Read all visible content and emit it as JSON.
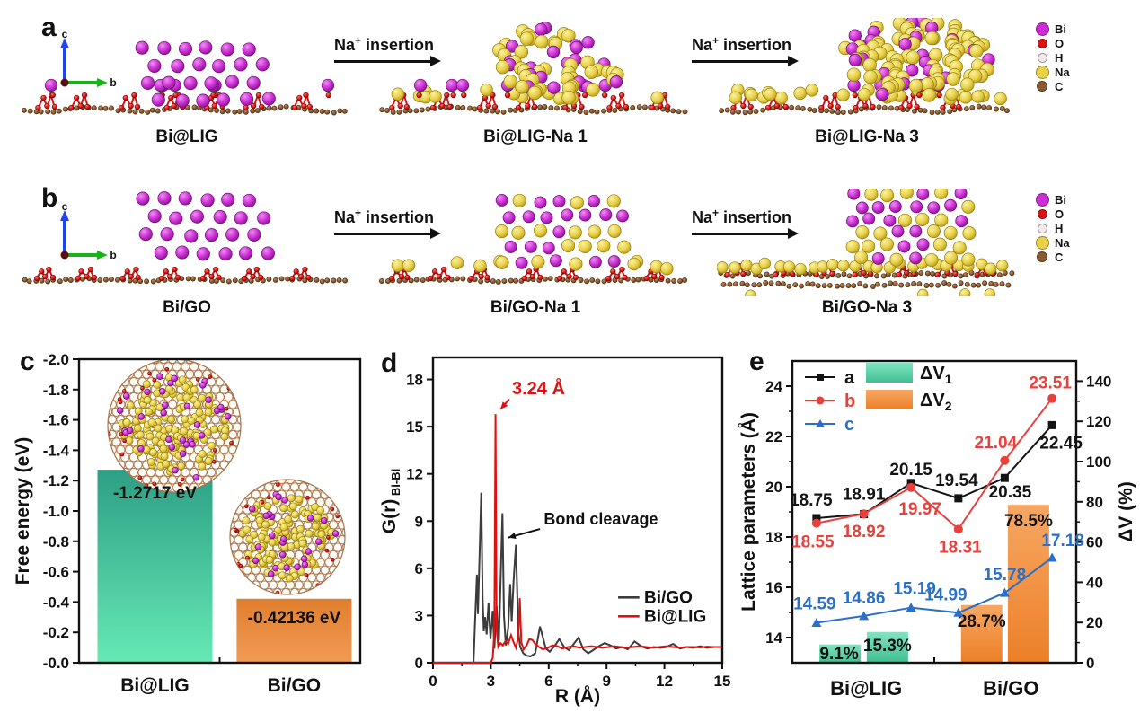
{
  "panel_letters": {
    "a": "a",
    "b": "b",
    "c": "c",
    "d": "d",
    "e": "e"
  },
  "na_insertion": {
    "base": "Na",
    "sup": "+",
    "rest": " insertion"
  },
  "axis_icon": {
    "vertical": "c",
    "horizontal": "b"
  },
  "atom_colors": {
    "Bi": "#cb2ed2",
    "O": "#e01111",
    "H": "#f6e9ea",
    "Na": "#e9d149",
    "C": "#8a5a30"
  },
  "row_a": {
    "letter": "a",
    "structures": [
      {
        "label": "Bi@LIG",
        "kind": "bi_lattice",
        "substrate": "lig"
      },
      {
        "label": "Bi@LIG-Na 1",
        "kind": "mixed_medium",
        "substrate": "lig"
      },
      {
        "label": "Bi@LIG-Na 3",
        "kind": "mixed_large",
        "substrate": "lig"
      }
    ],
    "legend": [
      {
        "label": "Bi",
        "color": "#cb2ed2"
      },
      {
        "label": "O",
        "color": "#e01111"
      },
      {
        "label": "H",
        "color": "#f6e9ea"
      },
      {
        "label": "Na",
        "color": "#e9d149"
      },
      {
        "label": "C",
        "color": "#8a5a30"
      }
    ]
  },
  "row_b": {
    "letter": "b",
    "structures": [
      {
        "label": "Bi/GO",
        "kind": "bi_lattice_high",
        "substrate": "go"
      },
      {
        "label": "Bi/GO-Na 1",
        "kind": "mixed_ordered",
        "substrate": "go"
      },
      {
        "label": "Bi/GO-Na 3",
        "kind": "mixed_tall",
        "substrate": "go_na3"
      }
    ],
    "legend": [
      {
        "label": "Bi",
        "color": "#cb2ed2"
      },
      {
        "label": "O",
        "color": "#e01111"
      },
      {
        "label": "H",
        "color": "#f6e9ea"
      },
      {
        "label": "Na",
        "color": "#e9d149"
      },
      {
        "label": "C",
        "color": "#8a5a30"
      }
    ]
  },
  "chart_data": [
    {
      "id": "c",
      "type": "bar",
      "ylabel": "Free energy (eV)",
      "categories": [
        "Bi@LIG",
        "Bi/GO"
      ],
      "values": [
        -1.2717,
        -0.42136
      ],
      "bar_labels": [
        "-1.2717 eV",
        "-0.42136 eV"
      ],
      "bar_colors": [
        {
          "top": "#2d9f85",
          "bottom": "#66e9b5"
        },
        {
          "top": "#e07e2d",
          "bottom": "#f29b56"
        }
      ],
      "ylim": [
        -2.0,
        0.0
      ],
      "ytick_step": 0.2,
      "y_inverted": true,
      "grid": false,
      "insets": [
        "Bi@LIG Na-cluster top view",
        "Bi/GO Na-cluster top view"
      ]
    },
    {
      "id": "d",
      "type": "line",
      "xlabel": "R (Å)",
      "ylabel": "G(r)",
      "ylabel_subscript": "Bi-Bi",
      "xlim": [
        0,
        15
      ],
      "ylim": [
        0,
        19.4
      ],
      "xticks": [
        0,
        3,
        6,
        9,
        12,
        15
      ],
      "yticks": [
        0,
        3,
        6,
        9,
        12,
        15,
        18
      ],
      "xminor_step": 1.5,
      "grid": false,
      "legend_position": "right-middle",
      "annotations": [
        {
          "text": "3.24 Å",
          "color": "#e01010",
          "tx": 4.1,
          "ty": 17.05,
          "ax1": 3.95,
          "ay1": 16.75,
          "ax2": 3.5,
          "ay2": 16.1
        },
        {
          "text": "Bond cleavage",
          "color": "#111111",
          "tx": 5.75,
          "ty": 8.8,
          "ax1": 5.55,
          "ay1": 8.5,
          "ax2": 3.9,
          "ay2": 7.95
        }
      ],
      "series": [
        {
          "name": "Bi/GO",
          "color": "#3c3c3c",
          "points": [
            [
              0,
              0
            ],
            [
              2.1,
              0
            ],
            [
              2.2,
              3.2
            ],
            [
              2.28,
              5.6
            ],
            [
              2.33,
              3.1
            ],
            [
              2.42,
              7.0
            ],
            [
              2.5,
              10.8
            ],
            [
              2.57,
              4.2
            ],
            [
              2.63,
              2.0
            ],
            [
              2.7,
              2.9
            ],
            [
              2.78,
              1.8
            ],
            [
              2.88,
              3.8
            ],
            [
              2.98,
              1.5
            ],
            [
              3.1,
              3.3
            ],
            [
              3.18,
              0.9
            ],
            [
              3.3,
              3.6
            ],
            [
              3.42,
              1.4
            ],
            [
              3.52,
              6.0
            ],
            [
              3.6,
              9.5
            ],
            [
              3.68,
              3.0
            ],
            [
              3.78,
              1.1
            ],
            [
              3.9,
              2.2
            ],
            [
              4.0,
              5.0
            ],
            [
              4.08,
              2.6
            ],
            [
              4.18,
              5.2
            ],
            [
              4.3,
              7.5
            ],
            [
              4.42,
              2.0
            ],
            [
              4.52,
              1.0
            ],
            [
              4.68,
              0.6
            ],
            [
              4.85,
              0.45
            ],
            [
              5.05,
              0.4
            ],
            [
              5.3,
              0.6
            ],
            [
              5.55,
              2.3
            ],
            [
              5.7,
              1.6
            ],
            [
              5.85,
              0.9
            ],
            [
              6.05,
              0.7
            ],
            [
              6.3,
              1.05
            ],
            [
              6.55,
              1.5
            ],
            [
              6.8,
              1.0
            ],
            [
              7.05,
              0.8
            ],
            [
              7.3,
              1.2
            ],
            [
              7.55,
              1.6
            ],
            [
              7.8,
              0.85
            ],
            [
              8.05,
              0.6
            ],
            [
              8.3,
              0.8
            ],
            [
              8.6,
              1.05
            ],
            [
              8.9,
              1.25
            ],
            [
              9.2,
              1.1
            ],
            [
              9.5,
              0.9
            ],
            [
              9.8,
              1.0
            ],
            [
              10.1,
              0.85
            ],
            [
              10.45,
              1.35
            ],
            [
              10.8,
              1.05
            ],
            [
              11.1,
              0.9
            ],
            [
              11.45,
              1.0
            ],
            [
              11.8,
              0.95
            ],
            [
              12.1,
              1.0
            ],
            [
              12.45,
              1.2
            ],
            [
              12.8,
              0.9
            ],
            [
              13.15,
              1.0
            ],
            [
              13.5,
              0.95
            ],
            [
              13.85,
              1.05
            ],
            [
              14.2,
              0.95
            ],
            [
              14.6,
              1.0
            ],
            [
              15,
              1.0
            ]
          ]
        },
        {
          "name": "Bi@LIG",
          "color": "#e01010",
          "points": [
            [
              0,
              0
            ],
            [
              3.0,
              0
            ],
            [
              3.1,
              0.3
            ],
            [
              3.18,
              2.0
            ],
            [
              3.24,
              15.8
            ],
            [
              3.3,
              2.2
            ],
            [
              3.38,
              1.0
            ],
            [
              3.5,
              1.25
            ],
            [
              3.62,
              1.1
            ],
            [
              3.75,
              1.35
            ],
            [
              3.9,
              1.2
            ],
            [
              4.05,
              1.75
            ],
            [
              4.18,
              1.3
            ],
            [
              4.3,
              0.95
            ],
            [
              4.42,
              1.6
            ],
            [
              4.5,
              4.1
            ],
            [
              4.58,
              1.3
            ],
            [
              4.7,
              0.85
            ],
            [
              4.85,
              1.1
            ],
            [
              5.0,
              1.5
            ],
            [
              5.15,
              1.45
            ],
            [
              5.3,
              1.2
            ],
            [
              5.5,
              1.0
            ],
            [
              5.7,
              0.85
            ],
            [
              5.95,
              0.95
            ],
            [
              6.2,
              1.1
            ],
            [
              6.45,
              1.05
            ],
            [
              6.7,
              0.9
            ],
            [
              7.0,
              1.0
            ],
            [
              7.3,
              1.05
            ],
            [
              7.6,
              0.95
            ],
            [
              7.9,
              1.0
            ],
            [
              8.2,
              1.05
            ],
            [
              8.5,
              1.0
            ],
            [
              8.8,
              0.95
            ],
            [
              9.1,
              1.0
            ],
            [
              9.4,
              1.05
            ],
            [
              9.7,
              1.0
            ],
            [
              10.0,
              0.95
            ],
            [
              10.35,
              1.0
            ],
            [
              10.7,
              1.05
            ],
            [
              11.05,
              1.0
            ],
            [
              11.4,
              0.95
            ],
            [
              11.75,
              1.0
            ],
            [
              12.1,
              1.05
            ],
            [
              12.45,
              1.0
            ],
            [
              12.8,
              0.95
            ],
            [
              13.15,
              1.0
            ],
            [
              13.5,
              1.0
            ],
            [
              13.85,
              0.97
            ],
            [
              14.2,
              1.02
            ],
            [
              14.55,
              1.0
            ],
            [
              15,
              1.0
            ]
          ]
        }
      ]
    },
    {
      "id": "e",
      "type": "line+bar",
      "ylabel_left": "Lattice parameters (Å)",
      "ylabel_right": "ΔV (%)",
      "group_labels": [
        "Bi@LIG",
        "Bi/GO"
      ],
      "x_positions": [
        0.085,
        0.252,
        0.418,
        0.585,
        0.748,
        0.915
      ],
      "ylim_left": [
        13,
        25
      ],
      "yticks_left": [
        14,
        16,
        18,
        20,
        22,
        24
      ],
      "ylim_right": [
        0,
        150
      ],
      "yticks_right": [
        0,
        20,
        40,
        60,
        80,
        100,
        120,
        140
      ],
      "grid": false,
      "series": [
        {
          "name": "a",
          "marker": "square",
          "color": "#141414",
          "values": [
            18.75,
            18.91,
            20.15,
            19.54,
            20.35,
            22.45
          ]
        },
        {
          "name": "b",
          "marker": "circle",
          "color": "#e8413c",
          "values": [
            18.55,
            18.92,
            19.97,
            18.31,
            21.04,
            23.51
          ]
        },
        {
          "name": "c",
          "marker": "triangle",
          "color": "#2a6fc9",
          "values": [
            14.59,
            14.86,
            15.19,
            14.99,
            15.78,
            17.18
          ]
        }
      ],
      "bars": [
        {
          "name": "ΔV",
          "sub": "1",
          "color_top": "#82e3c2",
          "color_bottom": "#3ec091",
          "values": [
            {
              "x": 0.168,
              "v": 9.1,
              "text": "9.1%"
            },
            {
              "x": 0.335,
              "v": 15.3,
              "text": "15.3%"
            }
          ]
        },
        {
          "name": "ΔV",
          "sub": "2",
          "color_top": "#f7a763",
          "color_bottom": "#ec7f27",
          "values": [
            {
              "x": 0.667,
              "v": 28.7,
              "text": "28.7%"
            },
            {
              "x": 0.832,
              "v": 78.5,
              "text": "78.5%"
            }
          ]
        }
      ]
    }
  ]
}
